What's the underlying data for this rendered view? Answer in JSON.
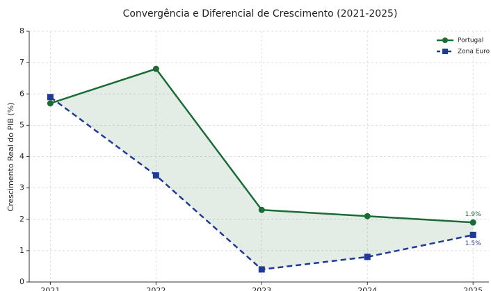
{
  "chart_data": {
    "type": "line",
    "title": "Convergência e Diferencial de Crescimento (2021-2025)",
    "ylabel": "Crescimento Real do PIB (%)",
    "x": [
      2021,
      2022,
      2023,
      2024,
      2025
    ],
    "xlim": [
      2020.8,
      2025.15
    ],
    "xticks": [
      2021,
      2022,
      2023,
      2024,
      2025
    ],
    "ylim": [
      0,
      8
    ],
    "yticks": [
      0,
      1,
      2,
      3,
      4,
      5,
      6,
      7,
      8
    ],
    "grid": true,
    "legend": "upper right",
    "series": [
      {
        "name": "Portugal",
        "color": "#1b6b35",
        "marker": "circle",
        "linestyle": "solid",
        "values": [
          5.7,
          6.8,
          2.3,
          2.1,
          1.9
        ],
        "value_labels": [
          null,
          null,
          null,
          null,
          "1.9%"
        ]
      },
      {
        "name": "Zona Euro",
        "color": "#1f3a96",
        "marker": "square",
        "linestyle": "dashed",
        "values": [
          5.9,
          3.4,
          0.4,
          0.8,
          1.5
        ],
        "value_labels": [
          null,
          null,
          null,
          null,
          "1.5%"
        ]
      }
    ]
  }
}
